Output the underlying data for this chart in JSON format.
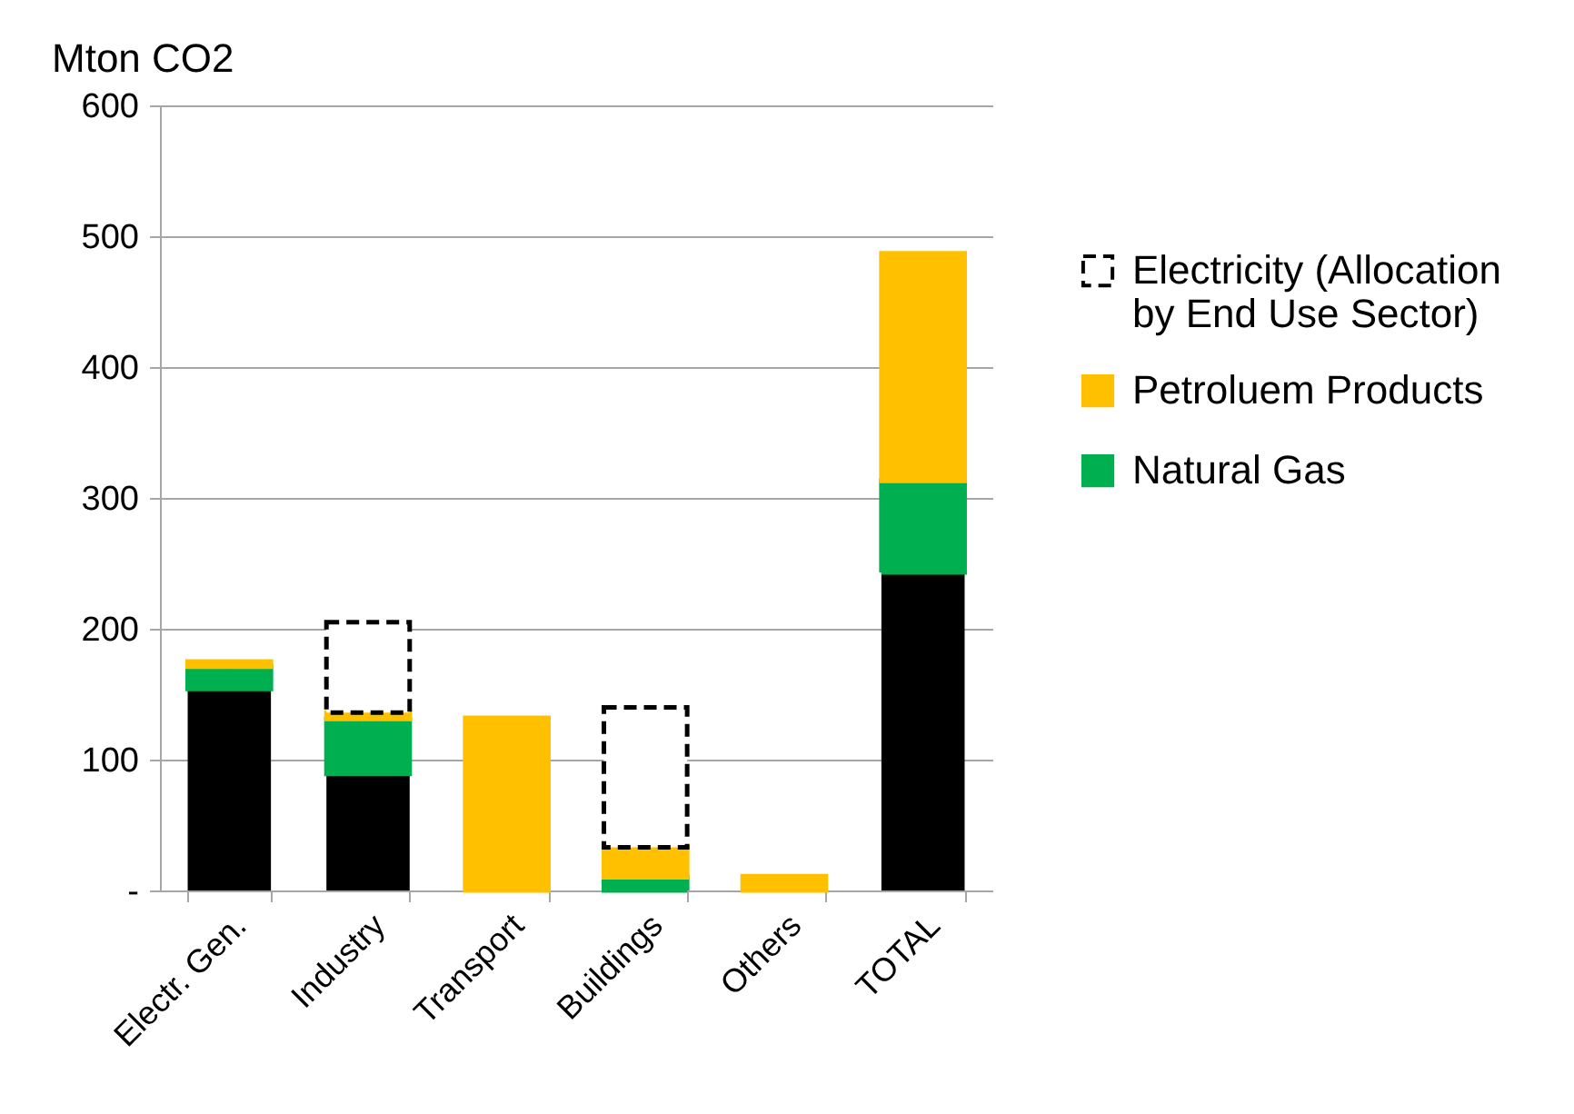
{
  "chart_data": {
    "type": "bar",
    "stacked": true,
    "ylabel": "Mton CO2",
    "categories": [
      "Electr. Gen.",
      "Industry",
      "Transport",
      "Buildings",
      "Others",
      "TOTAL"
    ],
    "series": [
      {
        "color": "#000000",
        "values": [
          154,
          89,
          null,
          null,
          null,
          243
        ]
      },
      {
        "name": "Natural Gas",
        "color": "#00b050",
        "values": [
          17,
          42,
          null,
          10,
          null,
          70
        ]
      },
      {
        "name": "Petroluem Products",
        "color": "#ffc000",
        "values": [
          4,
          5,
          132,
          23,
          11,
          174
        ]
      },
      {
        "name": "Electricity (Allocation by End Use Sector)",
        "color": "#ffffff",
        "line_style": "dashed",
        "values": [
          null,
          69,
          null,
          107,
          null,
          null
        ]
      }
    ],
    "ylim": [
      0,
      600
    ],
    "yticks": [
      {
        "value": 0,
        "label": "-"
      },
      100,
      200,
      300,
      400,
      500,
      600
    ],
    "grid": "y",
    "legend": "right"
  }
}
